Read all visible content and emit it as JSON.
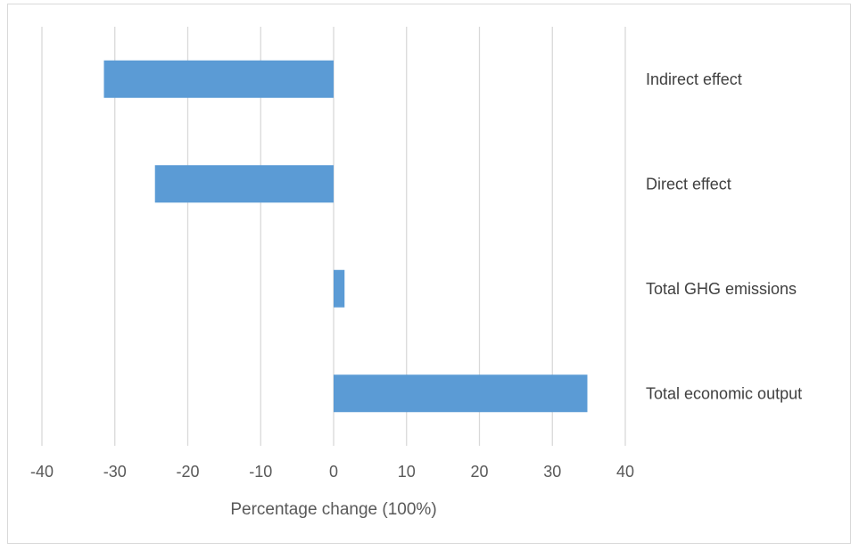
{
  "chart_data": {
    "type": "bar",
    "orientation": "horizontal",
    "categories": [
      "Indirect effect",
      "Direct effect",
      "Total GHG emissions",
      "Total economic output"
    ],
    "values": [
      -31.5,
      -24.5,
      1.5,
      34.8
    ],
    "xlabel": "Percentage change (100%)",
    "ylabel": "",
    "xlim": [
      -40,
      40
    ],
    "xticks": [
      "-40",
      "-30",
      "-20",
      "-10",
      "0",
      "10",
      "20",
      "30",
      "40"
    ],
    "grid": true,
    "legend": "none",
    "bar_color": "#5b9bd5",
    "grid_color": "#d9d9d9"
  }
}
